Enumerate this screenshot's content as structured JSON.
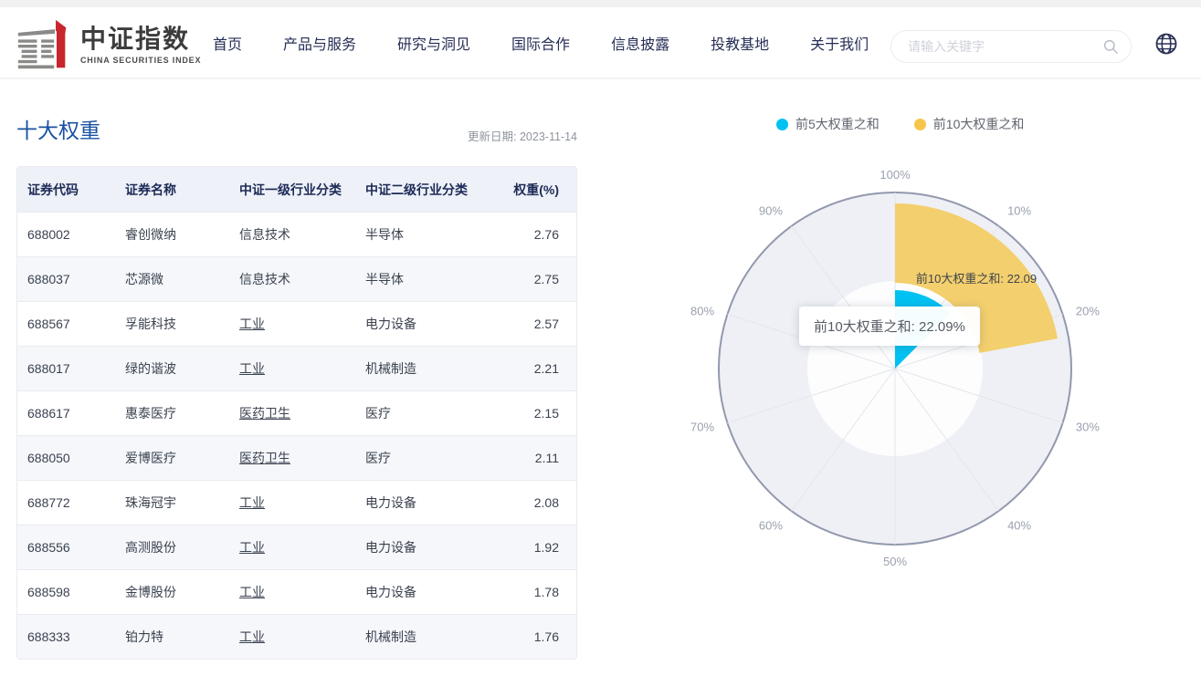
{
  "header": {
    "logo": {
      "title": "中证指数",
      "subtitle": "CHINA SECURITIES INDEX"
    },
    "nav": [
      "首页",
      "产品与服务",
      "研究与洞见",
      "国际合作",
      "信息披露",
      "投教基地",
      "关于我们"
    ],
    "search": {
      "placeholder": "请输入关键字"
    }
  },
  "main": {
    "title": "十大权重",
    "update_label": "更新日期: 2023-11-14"
  },
  "table": {
    "columns": [
      "证券代码",
      "证券名称",
      "中证一级行业分类",
      "中证二级行业分类",
      "权重(%)"
    ],
    "rows": [
      {
        "code": "688002",
        "name": "睿创微纳",
        "industry1": "信息技术",
        "industry1_underline": false,
        "industry2": "半导体",
        "weight": "2.76"
      },
      {
        "code": "688037",
        "name": "芯源微",
        "industry1": "信息技术",
        "industry1_underline": false,
        "industry2": "半导体",
        "weight": "2.75"
      },
      {
        "code": "688567",
        "name": "孚能科技",
        "industry1": "工业",
        "industry1_underline": true,
        "industry2": "电力设备",
        "weight": "2.57"
      },
      {
        "code": "688017",
        "name": "绿的谐波",
        "industry1": "工业",
        "industry1_underline": true,
        "industry2": "机械制造",
        "weight": "2.21"
      },
      {
        "code": "688617",
        "name": "惠泰医疗",
        "industry1": "医药卫生",
        "industry1_underline": true,
        "industry2": "医疗",
        "weight": "2.15"
      },
      {
        "code": "688050",
        "name": "爱博医疗",
        "industry1": "医药卫生",
        "industry1_underline": true,
        "industry2": "医疗",
        "weight": "2.11"
      },
      {
        "code": "688772",
        "name": "珠海冠宇",
        "industry1": "工业",
        "industry1_underline": true,
        "industry2": "电力设备",
        "weight": "2.08"
      },
      {
        "code": "688556",
        "name": "高测股份",
        "industry1": "工业",
        "industry1_underline": true,
        "industry2": "电力设备",
        "weight": "1.92"
      },
      {
        "code": "688598",
        "name": "金博股份",
        "industry1": "工业",
        "industry1_underline": true,
        "industry2": "电力设备",
        "weight": "1.78"
      },
      {
        "code": "688333",
        "name": "铂力特",
        "industry1": "工业",
        "industry1_underline": true,
        "industry2": "机械制造",
        "weight": "1.76"
      }
    ]
  },
  "chart_data": {
    "type": "polar-bar",
    "title": "",
    "angle_axis": {
      "min": 0,
      "max": 100,
      "unit": "%",
      "tick_labels": [
        "100%",
        "10%",
        "20%",
        "30%",
        "40%",
        "50%",
        "60%",
        "70%",
        "80%",
        "90%"
      ]
    },
    "series": [
      {
        "name": "前5大权重之和",
        "value": 12.44,
        "color": "#00c2f2",
        "legend_color": "#00c2f2"
      },
      {
        "name": "前10大权重之和",
        "value": 22.09,
        "color": "#f3cf6d",
        "legend_color": "#f6c64a"
      }
    ],
    "active_sector_label": "前10大权重之和: 22.09",
    "tooltip": {
      "text": "前10大权重之和: 22.09%"
    },
    "legend_position": "top",
    "styles": {
      "outer_ring_fill": "#eef0f5",
      "inner_circle_fill": "#fdfdfe",
      "outline_color": "#9298ad",
      "spoke_color": "#e4e6ec",
      "tick_color": "#9aa0ae"
    }
  }
}
